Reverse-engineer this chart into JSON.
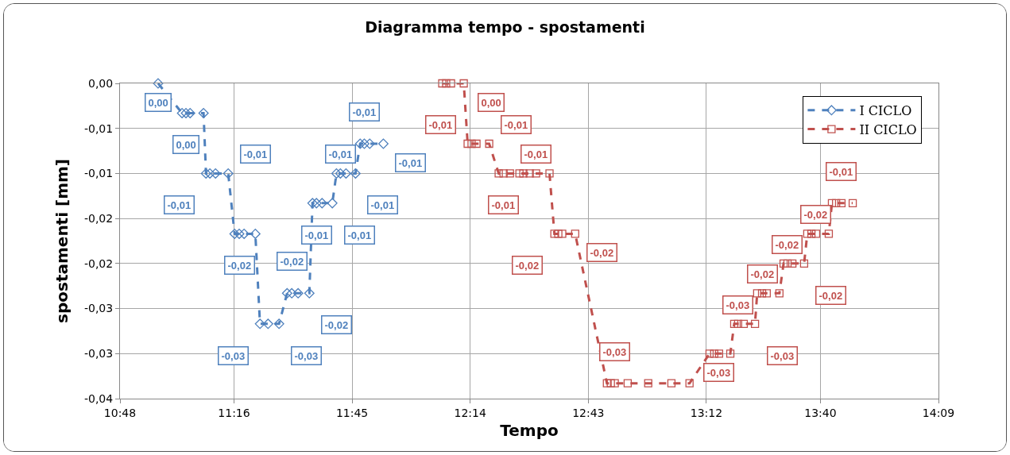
{
  "chart_data": {
    "type": "line",
    "title": "Diagramma tempo - spostamenti",
    "xlabel": "Tempo",
    "ylabel": "spostamenti [mm]",
    "xlim": [
      10.8,
      14.15
    ],
    "xticks": [
      {
        "value": 10.8,
        "label": "10:48"
      },
      {
        "value": 11.2667,
        "label": "11:16"
      },
      {
        "value": 11.75,
        "label": "11:45"
      },
      {
        "value": 12.2333,
        "label": "12:14"
      },
      {
        "value": 12.7167,
        "label": "12:43"
      },
      {
        "value": 13.2,
        "label": "13:12"
      },
      {
        "value": 13.6667,
        "label": "13:40"
      },
      {
        "value": 14.15,
        "label": "14:09"
      }
    ],
    "ylim": [
      -0.035,
      0
    ],
    "yticks": [
      {
        "value": 0,
        "label": "0,00"
      },
      {
        "value": -0.005,
        "label": "-0,01"
      },
      {
        "value": -0.01,
        "label": "-0,01"
      },
      {
        "value": -0.015,
        "label": "-0,02"
      },
      {
        "value": -0.02,
        "label": "-0,02"
      },
      {
        "value": -0.025,
        "label": "-0,03"
      },
      {
        "value": -0.03,
        "label": "-0,03"
      },
      {
        "value": -0.035,
        "label": "-0,04"
      }
    ],
    "grid": true,
    "legend": "top right",
    "line_style": "dashed",
    "series": [
      {
        "name": "I CICLO",
        "color": "#4f81bd",
        "marker": "diamond",
        "x": [
          10.956,
          11.054,
          11.07,
          11.087,
          11.142,
          11.152,
          11.168,
          11.191,
          11.243,
          11.269,
          11.288,
          11.308,
          11.354,
          11.373,
          11.406,
          11.451,
          11.484,
          11.503,
          11.529,
          11.575,
          11.588,
          11.604,
          11.627,
          11.669,
          11.686,
          11.702,
          11.725,
          11.764,
          11.783,
          11.8,
          11.822,
          11.878
        ],
        "values": [
          0,
          -0.0033,
          -0.0033,
          -0.0033,
          -0.0033,
          -0.01,
          -0.01,
          -0.01,
          -0.01,
          -0.0167,
          -0.0167,
          -0.0167,
          -0.0167,
          -0.0267,
          -0.0267,
          -0.0267,
          -0.0233,
          -0.0233,
          -0.0233,
          -0.0233,
          -0.0133,
          -0.0133,
          -0.0133,
          -0.0133,
          -0.01,
          -0.01,
          -0.01,
          -0.01,
          -0.0067,
          -0.0067,
          -0.0067,
          -0.0067
        ],
        "value_labels": [
          "0,00",
          null,
          "0,00",
          null,
          null,
          "-0,01",
          null,
          null,
          "-0,01",
          null,
          "-0,02",
          null,
          null,
          "-0,03",
          null,
          "-0,03",
          null,
          "-0,02",
          null,
          "-0,02",
          null,
          "-0,01",
          null,
          "-0,01",
          null,
          "-0,01",
          null,
          "-0,01",
          null,
          "-0,01",
          null,
          "-0,01"
        ]
      },
      {
        "name": "II CICLO",
        "color": "#c0504d",
        "marker": "square",
        "x": [
          12.119,
          12.135,
          12.155,
          12.207,
          12.223,
          12.239,
          12.259,
          12.311,
          12.35,
          12.37,
          12.396,
          12.435,
          12.451,
          12.477,
          12.503,
          12.558,
          12.578,
          12.594,
          12.61,
          12.663,
          12.793,
          12.809,
          12.825,
          12.878,
          12.962,
          13.057,
          13.131,
          13.213,
          13.232,
          13.252,
          13.298,
          13.314,
          13.33,
          13.353,
          13.399,
          13.408,
          13.428,
          13.447,
          13.499,
          13.516,
          13.532,
          13.552,
          13.6,
          13.613,
          13.63,
          13.649,
          13.701,
          13.714,
          13.731,
          13.753,
          13.799
        ],
        "values": [
          0,
          0,
          0,
          0,
          -0.0067,
          -0.0067,
          -0.0067,
          -0.0067,
          -0.01,
          -0.01,
          -0.01,
          -0.01,
          -0.01,
          -0.01,
          -0.01,
          -0.01,
          -0.0167,
          -0.0167,
          -0.0167,
          -0.0167,
          -0.0333,
          -0.0333,
          -0.0333,
          -0.0333,
          -0.0333,
          -0.0333,
          -0.0333,
          -0.03,
          -0.03,
          -0.03,
          -0.03,
          -0.0267,
          -0.0267,
          -0.0267,
          -0.0267,
          -0.0233,
          -0.0233,
          -0.0233,
          -0.0233,
          -0.02,
          -0.02,
          -0.02,
          -0.02,
          -0.0167,
          -0.0167,
          -0.0167,
          -0.0167,
          -0.0133,
          -0.0133,
          -0.0133,
          -0.0133
        ],
        "value_labels": [
          null,
          null,
          null,
          "0,00",
          "-0,01",
          null,
          null,
          "-0,01",
          null,
          "-0,01",
          null,
          null,
          null,
          null,
          "-0,01",
          null,
          "-0,02",
          null,
          null,
          "-0,02",
          null,
          null,
          "-0,03",
          null,
          null,
          null,
          null,
          null,
          null,
          "-0,03",
          null,
          null,
          "-0,03",
          null,
          "-0,03",
          null,
          "-0,02",
          null,
          null,
          null,
          "-0,02",
          null,
          "-0,02",
          null,
          null,
          "-0,02",
          null,
          null,
          null,
          "-0,01",
          null
        ]
      }
    ]
  }
}
